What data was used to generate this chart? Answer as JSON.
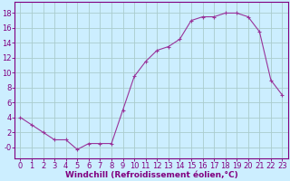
{
  "x": [
    0,
    1,
    2,
    3,
    4,
    5,
    6,
    7,
    8,
    9,
    10,
    11,
    12,
    13,
    14,
    15,
    16,
    17,
    18,
    19,
    20,
    21,
    22,
    23
  ],
  "y": [
    4,
    3,
    2,
    1,
    1,
    -0.3,
    0.5,
    0.5,
    0.5,
    5,
    9.5,
    11.5,
    13,
    13.5,
    14.5,
    17,
    17.5,
    17.5,
    18,
    18,
    17.5,
    15.5,
    9,
    7
  ],
  "line_color": "#993399",
  "marker": "+",
  "bg_color": "#cceeff",
  "grid_color": "#aacccc",
  "xlabel": "Windchill (Refroidissement éolien,°C)",
  "xlabel_fontsize": 6.5,
  "ytick_values": [
    0,
    2,
    4,
    6,
    8,
    10,
    12,
    14,
    16,
    18
  ],
  "ytick_labels": [
    "-0",
    "2",
    "4",
    "6",
    "8",
    "10",
    "12",
    "14",
    "16",
    "18"
  ],
  "xtick_labels": [
    "0",
    "1",
    "2",
    "3",
    "4",
    "5",
    "6",
    "7",
    "8",
    "9",
    "10",
    "11",
    "12",
    "13",
    "14",
    "15",
    "16",
    "17",
    "18",
    "19",
    "20",
    "21",
    "22",
    "23"
  ],
  "ylim": [
    -1.5,
    19.5
  ],
  "xlim": [
    -0.5,
    23.5
  ],
  "tick_fontsize": 6,
  "spine_color": "#800080",
  "label_color": "#800080"
}
